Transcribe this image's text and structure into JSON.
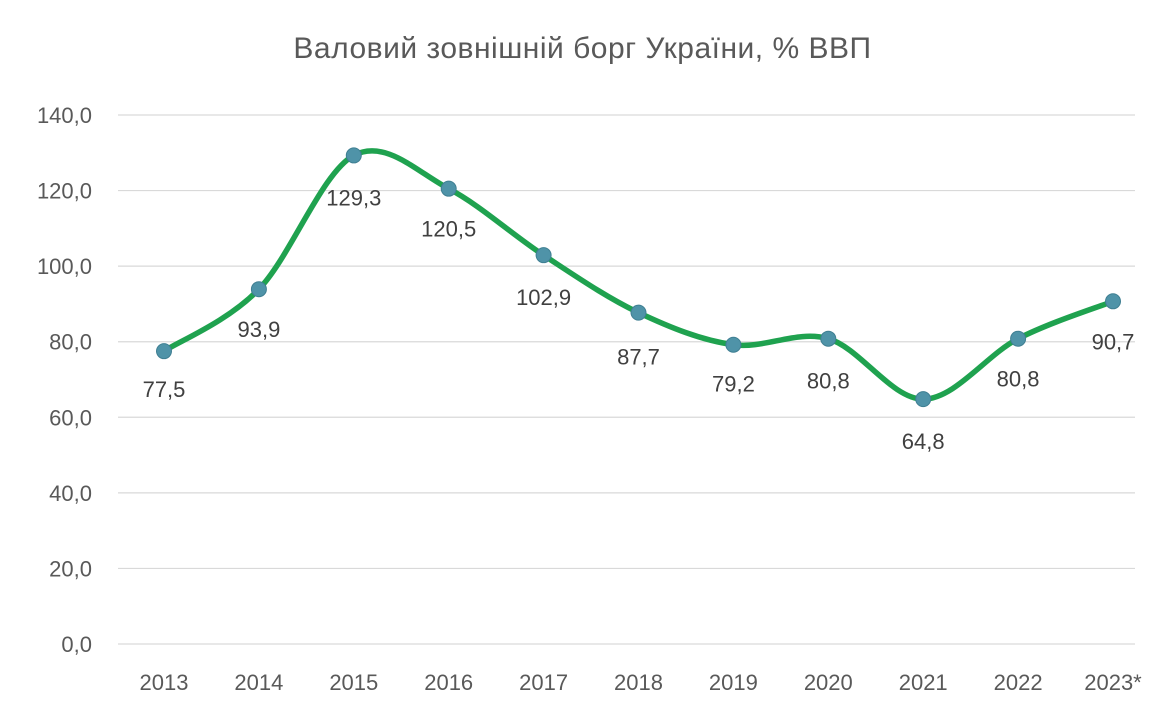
{
  "chart_data": {
    "type": "line",
    "title": "Валовий  зовнішній борг України, % ВВП",
    "categories": [
      "2013",
      "2014",
      "2015",
      "2016",
      "2017",
      "2018",
      "2019",
      "2020",
      "2021",
      "2022",
      "2023*"
    ],
    "series": [
      {
        "values": [
          77.5,
          93.9,
          129.3,
          120.5,
          102.9,
          87.7,
          79.2,
          80.8,
          64.8,
          80.8,
          90.7
        ],
        "labels": [
          "77,5",
          "93,9",
          "129,3",
          "120,5",
          "102,9",
          "87,7",
          "79,2",
          "80,8",
          "64,8",
          "80,8",
          "90,7"
        ]
      }
    ],
    "ylim": [
      0,
      140
    ],
    "yticks": [
      0,
      20,
      40,
      60,
      80,
      100,
      120,
      140
    ],
    "ytick_labels": [
      "0,0",
      "20,0",
      "40,0",
      "60,0",
      "80,0",
      "100,0",
      "120,0",
      "140,0"
    ],
    "grid": true,
    "legend": "none",
    "smooth": true,
    "colors": {
      "line": "#1fa24f",
      "marker": "#4f93a8",
      "grid": "#d9d9d9",
      "text": "#595959"
    }
  }
}
